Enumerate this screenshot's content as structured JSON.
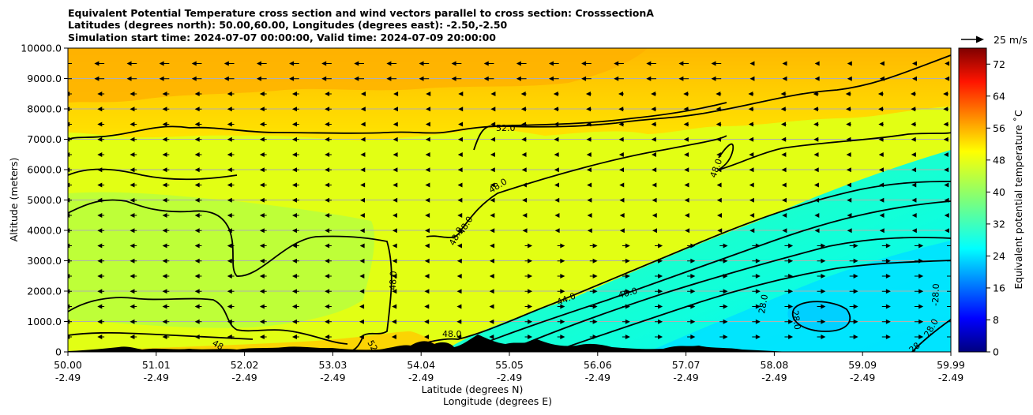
{
  "chart_data": {
    "type": "heatmap",
    "title_lines": [
      "Equivalent Potential Temperature cross section and wind vectors parallel to cross section: CrosssectionA",
      "Latitudes (degrees north): 50.00,60.00, Longitudes (degrees east): -2.50,-2.50",
      "Simulation start time: 2024-07-07 00:00:00, Valid time: 2024-07-09 20:00:00"
    ],
    "xlabel_lat": "Latitude (degrees N)",
    "xlabel_lon": "Longitude (degrees E)",
    "ylabel": "Altitude (meters)",
    "x_ticks_lat": [
      "50.00",
      "51.01",
      "52.02",
      "53.03",
      "54.04",
      "55.05",
      "56.06",
      "57.07",
      "58.08",
      "59.09",
      "59.99"
    ],
    "x_ticks_lon": [
      "-2.49",
      "-2.49",
      "-2.49",
      "-2.49",
      "-2.49",
      "-2.49",
      "-2.49",
      "-2.49",
      "-2.49",
      "-2.49",
      "-2.49"
    ],
    "y_ticks": [
      "0",
      "1000.0",
      "2000.0",
      "3000.0",
      "4000.0",
      "5000.0",
      "6000.0",
      "7000.0",
      "8000.0",
      "9000.0",
      "10000.0"
    ],
    "ylim": [
      0,
      10000
    ],
    "colorbar": {
      "label": "Equivalent potential temperature ˚C",
      "ticks": [
        "0",
        "8",
        "16",
        "24",
        "32",
        "40",
        "48",
        "56",
        "64",
        "72"
      ],
      "range": [
        0,
        76
      ]
    },
    "wind_key": "25 m/s",
    "contour_labels": [
      "52.0",
      "48.0",
      "48.0",
      "48.0",
      "48.0",
      "48.0",
      "48",
      "52",
      "48.0",
      "44.0",
      "40.0",
      "28.0",
      "28.0",
      "-28.0",
      "28.0",
      "28"
    ],
    "colors": {
      "ground": "#000000",
      "contour": "#000000",
      "grid": "#b0b0b0"
    }
  }
}
